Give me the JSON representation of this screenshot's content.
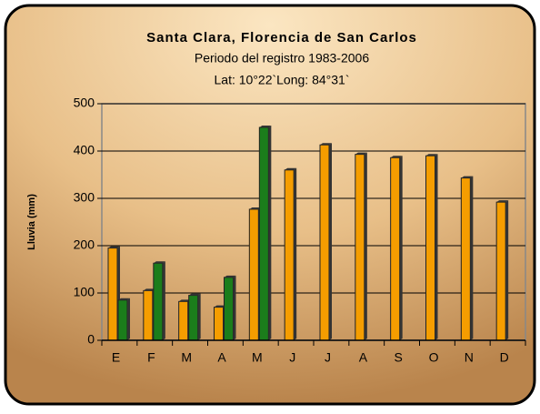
{
  "chart_data": {
    "type": "bar",
    "title": "Santa Clara, Florencia de San Carlos",
    "subtitle": "Periodo del registro  1983-2006",
    "annotation": "Lat: 10°22`Long: 84°31`",
    "y_label": "Lluvia (mm)",
    "categories": [
      "E",
      "F",
      "M",
      "A",
      "M",
      "J",
      "J",
      "A",
      "S",
      "O",
      "N",
      "D"
    ],
    "series": [
      {
        "color": "#f59d00",
        "values": [
          195,
          105,
          82,
          70,
          277,
          360,
          413,
          393,
          386,
          390,
          343,
          292
        ]
      },
      {
        "color": "#1b7d1b",
        "values": [
          85,
          163,
          95,
          133,
          450,
          null,
          null,
          null,
          null,
          null,
          null,
          null
        ]
      }
    ],
    "ylim": [
      0,
      500
    ],
    "yticks": [
      0,
      100,
      200,
      300,
      400,
      500
    ],
    "grid": true
  }
}
